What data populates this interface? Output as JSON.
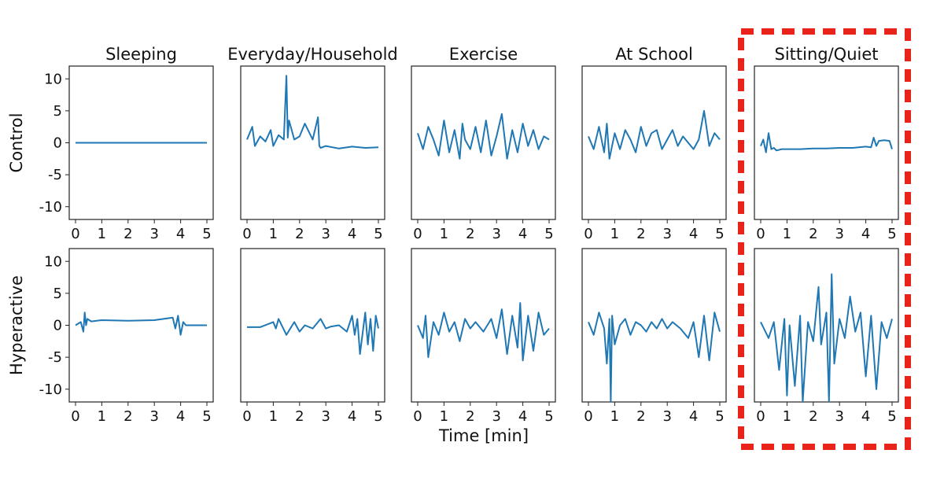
{
  "chart_data": {
    "type": "line",
    "xlabel": "Time [min]",
    "x_ticks": [
      0,
      1,
      2,
      3,
      4,
      5
    ],
    "y_ticks": [
      10,
      5,
      0,
      -5,
      -10
    ],
    "xlim": [
      0,
      5
    ],
    "ylim": [
      -12,
      12
    ],
    "rows": [
      "Control",
      "Hyperactive"
    ],
    "columns": [
      "Sleeping",
      "Everyday/Household",
      "Exercise",
      "At School",
      "Sitting/Quiet"
    ],
    "highlighted_column": "Sitting/Quiet",
    "highlight_color": "#e8231a",
    "line_color": "#1f77b4",
    "panels": [
      {
        "row": "Control",
        "column": "Sleeping",
        "x": [
          0,
          5
        ],
        "y": [
          0,
          0
        ]
      },
      {
        "row": "Control",
        "column": "Everyday/Household",
        "x": [
          0,
          0.2,
          0.3,
          0.5,
          0.7,
          0.9,
          1.0,
          1.2,
          1.4,
          1.5,
          1.55,
          1.6,
          1.8,
          2.0,
          2.2,
          2.5,
          2.7,
          2.75,
          2.8,
          3.0,
          3.5,
          4.0,
          4.5,
          5.0
        ],
        "y": [
          0.5,
          2.5,
          -0.5,
          1.0,
          0.2,
          2.0,
          -0.5,
          1.2,
          0.5,
          10.5,
          0.8,
          3.5,
          0.5,
          1.0,
          3.0,
          0.5,
          4.0,
          -0.5,
          -0.8,
          -0.5,
          -0.9,
          -0.6,
          -0.8,
          -0.7
        ]
      },
      {
        "row": "Control",
        "column": "Exercise",
        "x": [
          0,
          0.2,
          0.4,
          0.6,
          0.8,
          1.0,
          1.2,
          1.4,
          1.6,
          1.7,
          1.8,
          2.0,
          2.2,
          2.4,
          2.6,
          2.8,
          3.0,
          3.2,
          3.4,
          3.6,
          3.8,
          4.0,
          4.2,
          4.4,
          4.6,
          4.8,
          5.0
        ],
        "y": [
          1.5,
          -1.0,
          2.5,
          0.5,
          -2.0,
          3.5,
          -1.5,
          2.0,
          -2.5,
          3.0,
          0.5,
          -1.0,
          2.5,
          -1.5,
          3.5,
          -2.0,
          1.0,
          4.5,
          -2.5,
          2.0,
          -1.5,
          3.0,
          -0.5,
          2.0,
          -1.0,
          1.0,
          0.5
        ]
      },
      {
        "row": "Control",
        "column": "At School",
        "x": [
          0,
          0.2,
          0.4,
          0.6,
          0.7,
          0.8,
          1.0,
          1.2,
          1.4,
          1.6,
          1.8,
          2.0,
          2.2,
          2.4,
          2.6,
          2.8,
          3.0,
          3.2,
          3.4,
          3.6,
          3.8,
          4.0,
          4.2,
          4.4,
          4.6,
          4.8,
          5.0
        ],
        "y": [
          1.0,
          -1.0,
          2.5,
          -1.5,
          3.0,
          -2.5,
          1.5,
          -1.0,
          2.0,
          0.5,
          -1.5,
          2.5,
          -0.5,
          1.5,
          2.0,
          -1.0,
          0.5,
          2.0,
          -0.5,
          1.0,
          0.0,
          -1.0,
          0.5,
          5.0,
          -0.5,
          1.5,
          0.5
        ]
      },
      {
        "row": "Control",
        "column": "Sitting/Quiet",
        "x": [
          0,
          0.1,
          0.2,
          0.3,
          0.4,
          0.5,
          0.6,
          0.8,
          1.0,
          1.5,
          2.0,
          2.5,
          3.0,
          3.5,
          4.0,
          4.2,
          4.3,
          4.4,
          4.5,
          4.7,
          4.9,
          5.0
        ],
        "y": [
          -0.5,
          0.5,
          -1.5,
          1.5,
          -1.0,
          -0.8,
          -1.2,
          -1.0,
          -1.0,
          -1.0,
          -0.9,
          -0.9,
          -0.8,
          -0.8,
          -0.6,
          -0.7,
          0.8,
          -0.5,
          0.3,
          0.4,
          0.3,
          -1.0
        ]
      },
      {
        "row": "Hyperactive",
        "column": "Sleeping",
        "x": [
          0,
          0.2,
          0.3,
          0.35,
          0.4,
          0.45,
          0.6,
          1.0,
          2.0,
          3.0,
          3.7,
          3.8,
          3.9,
          4.0,
          4.1,
          4.2,
          5.0
        ],
        "y": [
          0,
          0.5,
          -1.0,
          2.0,
          0.0,
          1.0,
          0.6,
          0.8,
          0.7,
          0.8,
          1.2,
          -0.5,
          1.5,
          -1.5,
          0.5,
          0.0,
          0.0
        ]
      },
      {
        "row": "Hyperactive",
        "column": "Everyday/Household",
        "x": [
          0,
          0.5,
          1.0,
          1.1,
          1.2,
          1.5,
          1.8,
          2.0,
          2.2,
          2.5,
          2.8,
          3.0,
          3.2,
          3.5,
          3.8,
          4.0,
          4.1,
          4.2,
          4.3,
          4.5,
          4.6,
          4.7,
          4.8,
          4.9,
          5.0
        ],
        "y": [
          -0.3,
          -0.3,
          0.5,
          -0.5,
          1.0,
          -1.5,
          0.5,
          -1.0,
          0.0,
          -0.5,
          1.0,
          -0.5,
          -0.2,
          0.0,
          -1.0,
          1.5,
          -1.5,
          1.0,
          -4.5,
          2.0,
          -3.0,
          1.0,
          -4.0,
          1.5,
          -0.5
        ]
      },
      {
        "row": "Hyperactive",
        "column": "Exercise",
        "x": [
          0,
          0.2,
          0.3,
          0.4,
          0.6,
          0.8,
          1.0,
          1.2,
          1.4,
          1.6,
          1.8,
          2.0,
          2.2,
          2.5,
          2.8,
          3.0,
          3.2,
          3.4,
          3.6,
          3.8,
          3.9,
          4.0,
          4.2,
          4.4,
          4.6,
          4.8,
          5.0
        ],
        "y": [
          0.0,
          -2.0,
          1.5,
          -5.0,
          0.5,
          -1.5,
          2.0,
          -1.0,
          0.5,
          -2.5,
          1.0,
          -0.5,
          0.5,
          -1.0,
          1.0,
          -2.0,
          2.5,
          -4.5,
          1.5,
          -3.5,
          3.5,
          -5.5,
          1.5,
          -4.0,
          2.0,
          -1.5,
          -0.5
        ]
      },
      {
        "row": "Hyperactive",
        "column": "At School",
        "x": [
          0,
          0.2,
          0.4,
          0.6,
          0.7,
          0.8,
          0.85,
          0.9,
          1.0,
          1.2,
          1.4,
          1.6,
          1.8,
          2.0,
          2.2,
          2.4,
          2.6,
          2.8,
          3.0,
          3.2,
          3.5,
          3.8,
          4.0,
          4.2,
          4.4,
          4.6,
          4.8,
          5.0
        ],
        "y": [
          0.5,
          -1.5,
          2.0,
          -0.5,
          -6.0,
          1.0,
          -12.0,
          1.5,
          -3.0,
          0.0,
          1.0,
          -1.5,
          0.5,
          0.0,
          -1.0,
          0.5,
          -0.5,
          1.0,
          -0.5,
          0.5,
          -0.5,
          -2.0,
          0.5,
          -5.0,
          1.5,
          -5.5,
          2.0,
          -1.0
        ]
      },
      {
        "row": "Hyperactive",
        "column": "Sitting/Quiet",
        "x": [
          0,
          0.3,
          0.5,
          0.7,
          0.9,
          1.0,
          1.1,
          1.3,
          1.5,
          1.6,
          1.8,
          2.0,
          2.2,
          2.3,
          2.5,
          2.6,
          2.7,
          2.8,
          3.0,
          3.2,
          3.4,
          3.6,
          3.8,
          4.0,
          4.2,
          4.4,
          4.6,
          4.8,
          5.0
        ],
        "y": [
          0.5,
          -2.0,
          0.5,
          -7.0,
          1.0,
          -11.0,
          0.0,
          -9.5,
          1.5,
          -12.0,
          0.5,
          -2.5,
          6.0,
          -3.0,
          2.0,
          -12.0,
          8.0,
          -6.0,
          1.0,
          -2.0,
          4.5,
          -1.0,
          2.0,
          -8.0,
          1.5,
          -10.0,
          0.5,
          -2.0,
          1.0
        ]
      }
    ]
  }
}
